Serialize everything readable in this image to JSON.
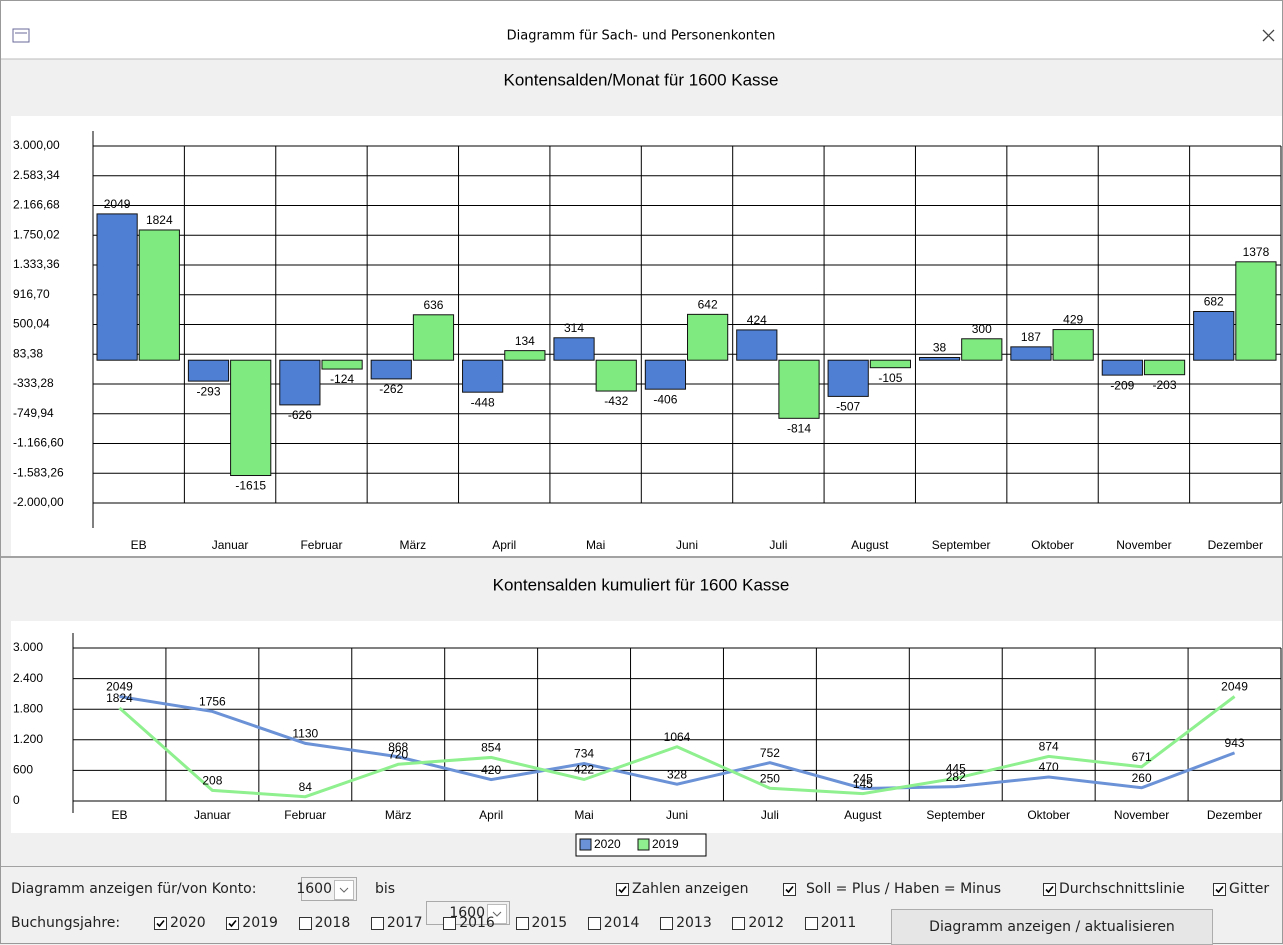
{
  "window": {
    "title": "Diagramm für Sach- und Personenkonten"
  },
  "chart_data": [
    {
      "type": "bar",
      "title": "Kontensalden/Monat für 1600 Kasse",
      "categories": [
        "EB",
        "Januar",
        "Februar",
        "März",
        "April",
        "Mai",
        "Juni",
        "Juli",
        "August",
        "September",
        "Oktober",
        "November",
        "Dezember"
      ],
      "series": [
        {
          "name": "2020",
          "color": "#4f7fd3",
          "values": [
            2049,
            -293,
            -626,
            -262,
            -448,
            314,
            -406,
            424,
            -507,
            38,
            187,
            -209,
            682
          ]
        },
        {
          "name": "2019",
          "color": "#7fea7f",
          "values": [
            1824,
            -1615,
            -124,
            636,
            134,
            -432,
            642,
            -814,
            -105,
            300,
            429,
            -203,
            1378
          ]
        }
      ],
      "ylim": [
        -2000,
        3000
      ],
      "yticks": [
        {
          "value": 3000,
          "label": "3.000,00"
        },
        {
          "value": 2583.34,
          "label": "2.583,34"
        },
        {
          "value": 2166.68,
          "label": "2.166,68"
        },
        {
          "value": 1750.02,
          "label": "1.750,02"
        },
        {
          "value": 1333.36,
          "label": "1.333,36"
        },
        {
          "value": 916.7,
          "label": "916,70"
        },
        {
          "value": 500.04,
          "label": "500,04"
        },
        {
          "value": 83.38,
          "label": "83,38"
        },
        {
          "value": -333.28,
          "label": "-333,28"
        },
        {
          "value": -749.94,
          "label": "-749,94"
        },
        {
          "value": -1166.6,
          "label": "-1.166,60"
        },
        {
          "value": -1583.26,
          "label": "-1.583,26"
        },
        {
          "value": -2000,
          "label": "-2.000,00"
        }
      ],
      "grid": true
    },
    {
      "type": "line",
      "title": "Kontensalden kumuliert für 1600 Kasse",
      "categories": [
        "EB",
        "Januar",
        "Februar",
        "März",
        "April",
        "Mai",
        "Juni",
        "Juli",
        "August",
        "September",
        "Oktober",
        "November",
        "Dezember"
      ],
      "series": [
        {
          "name": "2020",
          "color": "#6b92d6",
          "values": [
            2049,
            1756,
            1130,
            868,
            420,
            734,
            328,
            752,
            245,
            282,
            470,
            260,
            943
          ]
        },
        {
          "name": "2019",
          "color": "#8ef08e",
          "values": [
            1824,
            208,
            84,
            720,
            854,
            422,
            1064,
            250,
            145,
            445,
            874,
            671,
            2049
          ]
        }
      ],
      "ylim": [
        0,
        3000
      ],
      "yticks": [
        {
          "value": 3000,
          "label": "3.000"
        },
        {
          "value": 2400,
          "label": "2.400"
        },
        {
          "value": 1800,
          "label": "1.800"
        },
        {
          "value": 1200,
          "label": "1.200"
        },
        600,
        0
      ],
      "grid": true,
      "legend": "bottom"
    }
  ],
  "controls": {
    "account_label": "Diagramm anzeigen für/von Konto:",
    "account_from": "1600",
    "to_label": "bis",
    "account_to": "1600",
    "options": [
      {
        "label": "Zahlen anzeigen",
        "checked": true
      },
      {
        "label": "Soll = Plus / Haben = Minus",
        "checked": true
      },
      {
        "label": "Durchschnittslinie",
        "checked": true
      },
      {
        "label": "Gitter",
        "checked": true
      }
    ],
    "years_label": "Buchungsjahre:",
    "years": [
      {
        "label": "2020",
        "checked": true
      },
      {
        "label": "2019",
        "checked": true
      },
      {
        "label": "2018",
        "checked": false
      },
      {
        "label": "2017",
        "checked": false
      },
      {
        "label": "2016",
        "checked": false
      },
      {
        "label": "2015",
        "checked": false
      },
      {
        "label": "2014",
        "checked": false
      },
      {
        "label": "2013",
        "checked": false
      },
      {
        "label": "2012",
        "checked": false
      },
      {
        "label": "2011",
        "checked": false
      }
    ],
    "button": "Diagramm anzeigen / aktualisieren"
  }
}
